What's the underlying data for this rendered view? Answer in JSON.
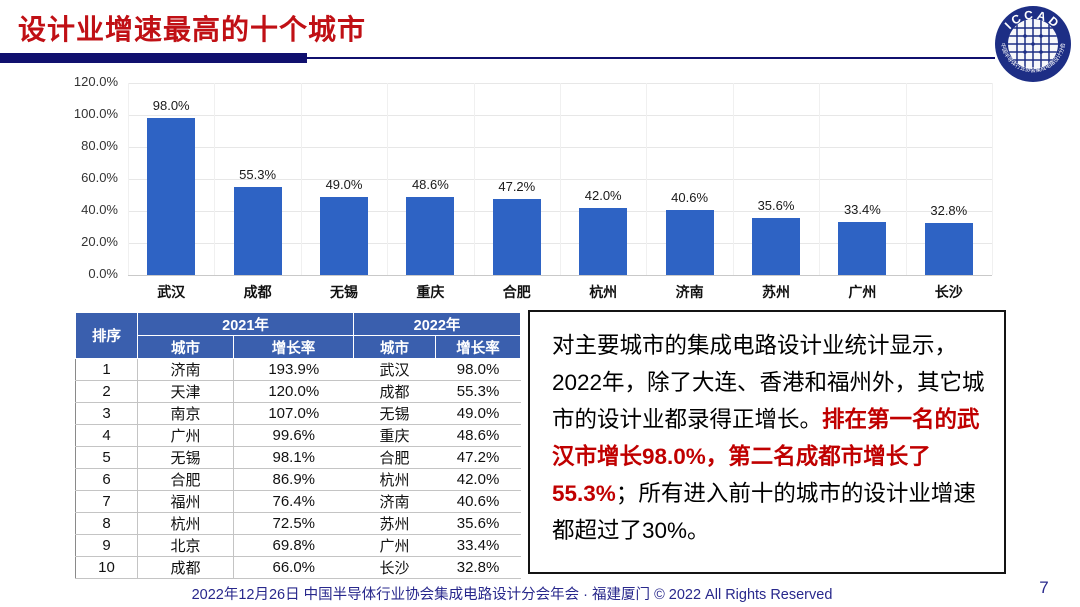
{
  "slide": {
    "title": "设计业增速最高的十个城市",
    "page_number": "7",
    "footer": "2022年12月26日 中国半导体行业协会集成电路设计分会年会 · 福建厦门 © 2022 All Rights Reserved"
  },
  "logo": {
    "text": "ICCAD",
    "ring_text": "中国半导体行业协会集成电路设计分会"
  },
  "colors": {
    "title_red": "#C01015",
    "rule_navy": "#10106E",
    "bar_blue": "#2E63C4",
    "table_header_blue": "#3A5FAE",
    "footer_blue": "#28288C",
    "note_red": "#C00000"
  },
  "chart_data": {
    "type": "bar",
    "title": "",
    "xlabel": "",
    "ylabel": "",
    "categories": [
      "武汉",
      "成都",
      "无锡",
      "重庆",
      "合肥",
      "杭州",
      "济南",
      "苏州",
      "广州",
      "长沙"
    ],
    "values": [
      98.0,
      55.3,
      49.0,
      48.6,
      47.2,
      42.0,
      40.6,
      35.6,
      33.4,
      32.8
    ],
    "bar_labels": [
      "98.0%",
      "55.3%",
      "49.0%",
      "48.6%",
      "47.2%",
      "42.0%",
      "40.6%",
      "35.6%",
      "33.4%",
      "32.8%"
    ],
    "y_ticks": [
      "0.0%",
      "20.0%",
      "40.0%",
      "60.0%",
      "80.0%",
      "100.0%",
      "120.0%"
    ],
    "ylim": [
      0,
      120
    ],
    "grid": true,
    "legend_position": "none"
  },
  "table": {
    "rank_header": "排序",
    "year_headers": [
      "2021年",
      "2022年"
    ],
    "sub_headers": [
      "城市",
      "增长率",
      "城市",
      "增长率"
    ],
    "rows": [
      [
        "1",
        "济南",
        "193.9%",
        "武汉",
        "98.0%"
      ],
      [
        "2",
        "天津",
        "120.0%",
        "成都",
        "55.3%"
      ],
      [
        "3",
        "南京",
        "107.0%",
        "无锡",
        "49.0%"
      ],
      [
        "4",
        "广州",
        "99.6%",
        "重庆",
        "48.6%"
      ],
      [
        "5",
        "无锡",
        "98.1%",
        "合肥",
        "47.2%"
      ],
      [
        "6",
        "合肥",
        "86.9%",
        "杭州",
        "42.0%"
      ],
      [
        "7",
        "福州",
        "76.4%",
        "济南",
        "40.6%"
      ],
      [
        "8",
        "杭州",
        "72.5%",
        "苏州",
        "35.6%"
      ],
      [
        "9",
        "北京",
        "69.8%",
        "广州",
        "33.4%"
      ],
      [
        "10",
        "成都",
        "66.0%",
        "长沙",
        "32.8%"
      ]
    ]
  },
  "note": {
    "segments": [
      {
        "text": "对主要城市的集成电路设计业统计显示，2022年，除了大连、香港和福州外，其它城市的设计业都录得正增长。",
        "emphasis": false
      },
      {
        "text": "排在第一名的武汉市增长98.0%，第二名成都市增长了55.3%",
        "emphasis": true
      },
      {
        "text": "；所有进入前十的城市的设计业增速都超过了30%。",
        "emphasis": false
      }
    ]
  }
}
